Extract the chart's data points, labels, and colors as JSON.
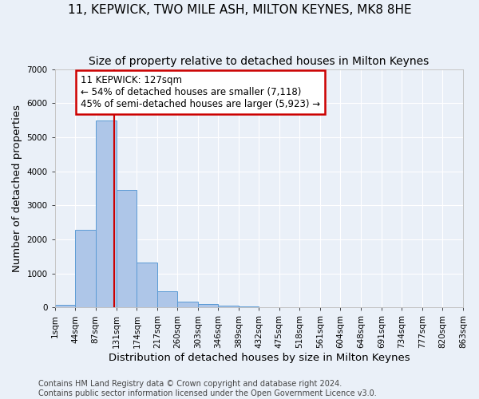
{
  "title": "11, KEPWICK, TWO MILE ASH, MILTON KEYNES, MK8 8HE",
  "subtitle": "Size of property relative to detached houses in Milton Keynes",
  "xlabel": "Distribution of detached houses by size in Milton Keynes",
  "ylabel": "Number of detached properties",
  "footnote1": "Contains HM Land Registry data © Crown copyright and database right 2024.",
  "footnote2": "Contains public sector information licensed under the Open Government Licence v3.0.",
  "bin_edges": [
    1,
    44,
    87,
    131,
    174,
    217,
    260,
    303,
    346,
    389,
    432,
    475,
    518,
    561,
    604,
    648,
    691,
    734,
    777,
    820,
    863
  ],
  "bar_heights": [
    80,
    2280,
    5480,
    3440,
    1320,
    470,
    160,
    100,
    65,
    30,
    0,
    0,
    0,
    0,
    0,
    0,
    0,
    0,
    0,
    0
  ],
  "bar_color": "#aec6e8",
  "bar_edge_color": "#5b9bd5",
  "property_size": 127,
  "red_line_color": "#cc0000",
  "annotation_line1": "11 KEPWICK: 127sqm",
  "annotation_line2": "← 54% of detached houses are smaller (7,118)",
  "annotation_line3": "45% of semi-detached houses are larger (5,923) →",
  "annotation_box_color": "#ffffff",
  "annotation_box_edge": "#cc0000",
  "ylim": [
    0,
    7000
  ],
  "yticks": [
    0,
    1000,
    2000,
    3000,
    4000,
    5000,
    6000,
    7000
  ],
  "background_color": "#eaf0f8",
  "grid_color": "#ffffff",
  "title_fontsize": 11,
  "subtitle_fontsize": 10,
  "axis_label_fontsize": 9.5,
  "tick_fontsize": 7.5,
  "annotation_fontsize": 8.5,
  "footnote_fontsize": 7
}
